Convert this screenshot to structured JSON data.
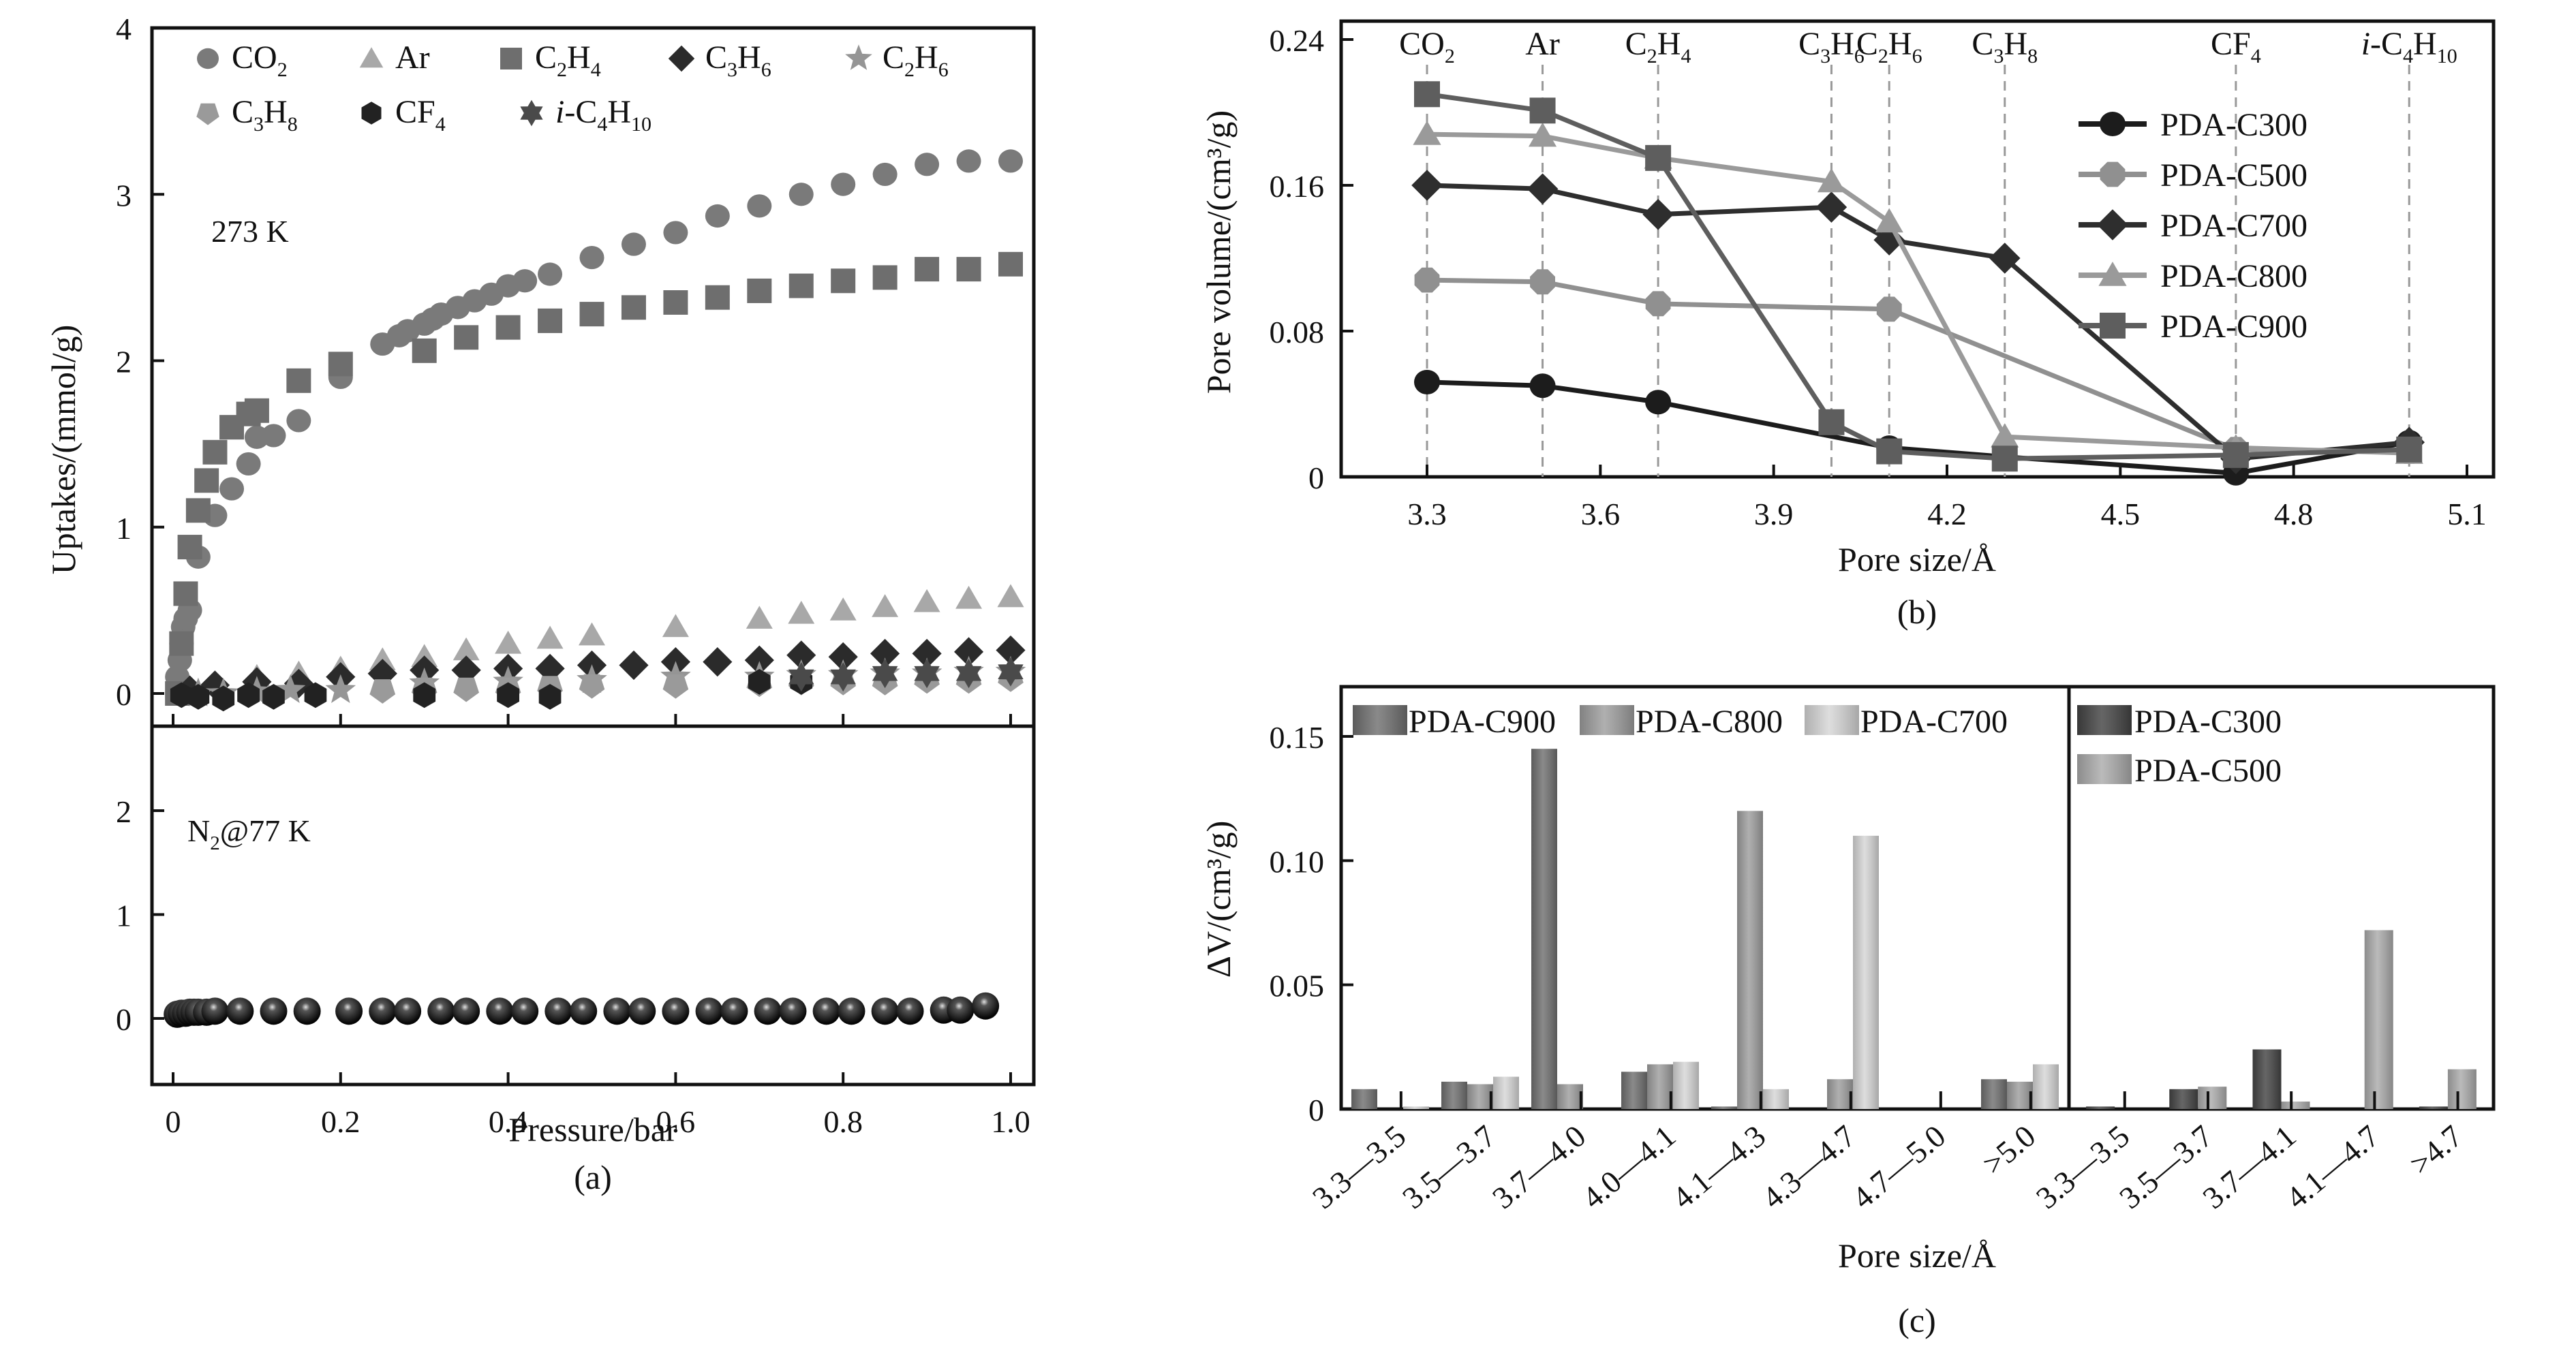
{
  "figure": {
    "panel_labels": [
      "(a)",
      "(b)",
      "(c)"
    ]
  },
  "chart_data": [
    {
      "id": "a-top",
      "type": "scatter",
      "title": "",
      "annotation": "273 K",
      "xlabel": "Pressure/bar",
      "ylabel": "Uptakes/(mmol/g)",
      "xlim": [
        -0.02,
        1.03
      ],
      "ylim": [
        -0.2,
        4
      ],
      "yticks": [
        0,
        1,
        2,
        3,
        4
      ],
      "xticks": [
        0,
        0.2,
        0.4,
        0.6,
        0.8,
        1.0
      ],
      "legend_position": "top",
      "series": [
        {
          "name": "CO2",
          "label_parts": [
            [
              "CO",
              ""
            ],
            [
              "2",
              "sub"
            ]
          ],
          "marker": "circle",
          "color": "#7a7a7a",
          "x": [
            0.005,
            0.008,
            0.01,
            0.012,
            0.015,
            0.02,
            0.03,
            0.05,
            0.07,
            0.09,
            0.1,
            0.12,
            0.15,
            0.2,
            0.25,
            0.27,
            0.28,
            0.3,
            0.31,
            0.32,
            0.34,
            0.36,
            0.38,
            0.4,
            0.42,
            0.45,
            0.5,
            0.55,
            0.6,
            0.65,
            0.7,
            0.75,
            0.8,
            0.85,
            0.9,
            0.95,
            1.0
          ],
          "y": [
            0.1,
            0.2,
            0.3,
            0.4,
            0.45,
            0.5,
            0.82,
            1.07,
            1.23,
            1.38,
            1.54,
            1.55,
            1.64,
            1.9,
            2.1,
            2.15,
            2.18,
            2.22,
            2.25,
            2.28,
            2.32,
            2.36,
            2.4,
            2.45,
            2.48,
            2.52,
            2.62,
            2.7,
            2.77,
            2.87,
            2.93,
            3.0,
            3.06,
            3.12,
            3.18,
            3.2,
            3.2
          ]
        },
        {
          "name": "Ar",
          "label_parts": [
            [
              "Ar",
              ""
            ]
          ],
          "marker": "triangle",
          "color": "#a8a8a8",
          "x": [
            0.05,
            0.1,
            0.15,
            0.2,
            0.25,
            0.3,
            0.35,
            0.4,
            0.45,
            0.5,
            0.6,
            0.7,
            0.75,
            0.8,
            0.85,
            0.9,
            0.95,
            1.0
          ],
          "y": [
            0.05,
            0.1,
            0.12,
            0.15,
            0.2,
            0.22,
            0.26,
            0.3,
            0.33,
            0.35,
            0.4,
            0.45,
            0.48,
            0.5,
            0.52,
            0.55,
            0.57,
            0.58
          ]
        },
        {
          "name": "C2H4",
          "label_parts": [
            [
              "C",
              ""
            ],
            [
              "2",
              "sub"
            ],
            [
              "H",
              ""
            ],
            [
              "4",
              "sub"
            ]
          ],
          "marker": "square",
          "color": "#6e6e6e",
          "x": [
            0.005,
            0.01,
            0.015,
            0.02,
            0.03,
            0.04,
            0.05,
            0.07,
            0.09,
            0.1,
            0.15,
            0.2,
            0.3,
            0.35,
            0.4,
            0.45,
            0.5,
            0.55,
            0.6,
            0.65,
            0.7,
            0.75,
            0.8,
            0.85,
            0.9,
            0.95,
            1.0
          ],
          "y": [
            0.0,
            0.3,
            0.6,
            0.88,
            1.1,
            1.28,
            1.45,
            1.6,
            1.68,
            1.7,
            1.88,
            1.98,
            2.06,
            2.14,
            2.2,
            2.24,
            2.28,
            2.32,
            2.35,
            2.38,
            2.42,
            2.45,
            2.48,
            2.5,
            2.55,
            2.55,
            2.58
          ]
        },
        {
          "name": "C3H6",
          "label_parts": [
            [
              "C",
              ""
            ],
            [
              "3",
              "sub"
            ],
            [
              "H",
              ""
            ],
            [
              "6",
              "sub"
            ]
          ],
          "marker": "diamond",
          "color": "#2b2b2b",
          "x": [
            0.02,
            0.05,
            0.1,
            0.15,
            0.2,
            0.25,
            0.3,
            0.35,
            0.4,
            0.45,
            0.5,
            0.55,
            0.6,
            0.65,
            0.7,
            0.75,
            0.8,
            0.85,
            0.9,
            0.95,
            1.0
          ],
          "y": [
            0.02,
            0.05,
            0.07,
            0.06,
            0.1,
            0.12,
            0.14,
            0.14,
            0.15,
            0.15,
            0.17,
            0.17,
            0.19,
            0.19,
            0.2,
            0.23,
            0.22,
            0.24,
            0.24,
            0.25,
            0.26
          ]
        },
        {
          "name": "C2H6",
          "label_parts": [
            [
              "C",
              ""
            ],
            [
              "2",
              "sub"
            ],
            [
              "H",
              ""
            ],
            [
              "6",
              "sub"
            ]
          ],
          "marker": "star5",
          "color": "#959595",
          "x": [
            0.03,
            0.06,
            0.1,
            0.14,
            0.2,
            0.3,
            0.4,
            0.5,
            0.6,
            0.7,
            0.75,
            0.8,
            0.85,
            0.9,
            0.95,
            1.0
          ],
          "y": [
            0.0,
            0.0,
            0.01,
            0.02,
            0.02,
            0.06,
            0.07,
            0.08,
            0.1,
            0.1,
            0.11,
            0.11,
            0.12,
            0.12,
            0.13,
            0.13
          ]
        },
        {
          "name": "C3H8",
          "label_parts": [
            [
              "C",
              ""
            ],
            [
              "3",
              "sub"
            ],
            [
              "H",
              ""
            ],
            [
              "8",
              "sub"
            ]
          ],
          "marker": "pentagon",
          "color": "#9a9a9a",
          "x": [
            0.25,
            0.3,
            0.35,
            0.4,
            0.45,
            0.5,
            0.6,
            0.7,
            0.75,
            0.8,
            0.85,
            0.9,
            0.95,
            1.0
          ],
          "y": [
            0.02,
            0.03,
            0.03,
            0.03,
            0.04,
            0.05,
            0.05,
            0.06,
            0.07,
            0.07,
            0.07,
            0.08,
            0.08,
            0.09
          ]
        },
        {
          "name": "CF4",
          "label_parts": [
            [
              "CF",
              ""
            ],
            [
              "4",
              "sub"
            ]
          ],
          "marker": "hexagon",
          "color": "#222222",
          "x": [
            0.01,
            0.03,
            0.06,
            0.09,
            0.12,
            0.17,
            0.3,
            0.4,
            0.45,
            0.7,
            0.75
          ],
          "y": [
            -0.01,
            -0.02,
            -0.03,
            -0.01,
            -0.02,
            -0.01,
            -0.01,
            -0.01,
            -0.02,
            0.07,
            0.07
          ]
        },
        {
          "name": "i-C4H10",
          "label_parts": [
            [
              "i",
              "ital"
            ],
            [
              "-C",
              ""
            ],
            [
              "4",
              "sub"
            ],
            [
              "H",
              ""
            ],
            [
              "10",
              "sub"
            ]
          ],
          "marker": "star6",
          "color": "#4a4a4a",
          "x": [
            0.75,
            0.8,
            0.85,
            0.9,
            0.95,
            1.0
          ],
          "y": [
            0.1,
            0.1,
            0.12,
            0.12,
            0.12,
            0.13
          ]
        }
      ]
    },
    {
      "id": "a-bottom",
      "type": "scatter",
      "annotation_parts": [
        [
          "N",
          ""
        ],
        [
          "2",
          "sub"
        ],
        [
          "@77 K",
          ""
        ]
      ],
      "xlim": [
        -0.02,
        1.03
      ],
      "ylim": [
        -0.2,
        2.75
      ],
      "yticks": [
        0,
        1,
        2
      ],
      "xticks": [
        0,
        0.2,
        0.4,
        0.6,
        0.8,
        1.0
      ],
      "xticklabels": [
        "0",
        "0.2",
        "0.4",
        "0.6",
        "0.8",
        "1.0"
      ],
      "series": [
        {
          "name": "N2 @77 K",
          "marker": "sphere",
          "color": "#151515",
          "x": [
            0.005,
            0.01,
            0.015,
            0.02,
            0.025,
            0.03,
            0.04,
            0.05,
            0.08,
            0.12,
            0.16,
            0.21,
            0.25,
            0.28,
            0.32,
            0.35,
            0.39,
            0.42,
            0.46,
            0.49,
            0.53,
            0.56,
            0.6,
            0.64,
            0.67,
            0.71,
            0.74,
            0.78,
            0.81,
            0.85,
            0.88,
            0.92,
            0.94,
            0.97
          ],
          "y": [
            0.04,
            0.05,
            0.05,
            0.06,
            0.06,
            0.06,
            0.06,
            0.07,
            0.07,
            0.07,
            0.07,
            0.07,
            0.07,
            0.07,
            0.07,
            0.07,
            0.07,
            0.07,
            0.07,
            0.07,
            0.07,
            0.07,
            0.07,
            0.07,
            0.07,
            0.07,
            0.07,
            0.07,
            0.07,
            0.07,
            0.07,
            0.08,
            0.08,
            0.12
          ]
        }
      ],
      "panel_label": "(a)"
    },
    {
      "id": "b",
      "type": "line",
      "xlabel": "Pore size/Å",
      "ylabel": "Pore volume/(cm³/g)",
      "xlim": [
        3.15,
        5.19
      ],
      "ylim": [
        0,
        0.2475
      ],
      "xticks": [
        3.3,
        3.6,
        3.9,
        4.2,
        4.5,
        4.8,
        5.1
      ],
      "xticklabels": [
        "3.3",
        "3.6",
        "3.9",
        "4.2",
        "4.5",
        "4.8",
        "5.1"
      ],
      "yticks": [
        0,
        0.08,
        0.16,
        0.24
      ],
      "yticklabels": [
        "0",
        "0.08",
        "0.16",
        "0.24"
      ],
      "legend_position": "right",
      "reference_lines": [
        {
          "x": 3.3,
          "label_parts": [
            [
              "CO",
              ""
            ],
            [
              "2",
              "sub"
            ]
          ]
        },
        {
          "x": 3.5,
          "label_parts": [
            [
              "Ar",
              ""
            ]
          ]
        },
        {
          "x": 3.7,
          "label_parts": [
            [
              "C",
              ""
            ],
            [
              "2",
              "sub"
            ],
            [
              "H",
              ""
            ],
            [
              "4",
              "sub"
            ]
          ]
        },
        {
          "x": 4.0,
          "label_parts": [
            [
              "C",
              ""
            ],
            [
              "3",
              "sub"
            ],
            [
              "H",
              ""
            ],
            [
              "6",
              "sub"
            ]
          ]
        },
        {
          "x": 4.1,
          "label_parts": [
            [
              "C",
              ""
            ],
            [
              "2",
              "sub"
            ],
            [
              "H",
              ""
            ],
            [
              "6",
              "sub"
            ]
          ]
        },
        {
          "x": 4.3,
          "label_parts": [
            [
              "C",
              ""
            ],
            [
              "3",
              "sub"
            ],
            [
              "H",
              ""
            ],
            [
              "8",
              "sub"
            ]
          ]
        },
        {
          "x": 4.7,
          "label_parts": [
            [
              "CF",
              ""
            ],
            [
              "4",
              "sub"
            ]
          ]
        },
        {
          "x": 5.0,
          "label_parts": [
            [
              "i",
              "ital"
            ],
            [
              "-C",
              ""
            ],
            [
              "4",
              "sub"
            ],
            [
              "H",
              ""
            ],
            [
              "10",
              "sub"
            ]
          ]
        }
      ],
      "series": [
        {
          "name": "PDA-C300",
          "marker": "circle",
          "color": "#1c1c1c",
          "x": [
            3.3,
            3.5,
            3.7,
            4.1,
            4.3,
            4.7,
            5.0
          ],
          "y": [
            0.052,
            0.05,
            0.041,
            0.016,
            0.011,
            0.002,
            0.019
          ]
        },
        {
          "name": "PDA-C500",
          "marker": "octagon",
          "color": "#909090",
          "x": [
            3.3,
            3.5,
            3.7,
            4.1,
            4.7,
            5.0
          ],
          "y": [
            0.108,
            0.107,
            0.095,
            0.092,
            0.015,
            0.014
          ]
        },
        {
          "name": "PDA-C700",
          "marker": "diamond",
          "color": "#2e2e2e",
          "x": [
            3.3,
            3.5,
            3.7,
            4.0,
            4.1,
            4.3,
            4.7,
            5.0
          ],
          "y": [
            0.16,
            0.158,
            0.144,
            0.148,
            0.13,
            0.12,
            0.01,
            0.019
          ]
        },
        {
          "name": "PDA-C800",
          "marker": "triangle",
          "color": "#9a9a9a",
          "x": [
            3.3,
            3.5,
            3.7,
            4.0,
            4.1,
            4.3,
            4.7,
            5.0
          ],
          "y": [
            0.188,
            0.187,
            0.175,
            0.162,
            0.14,
            0.022,
            0.016,
            0.013
          ]
        },
        {
          "name": "PDA-C900",
          "marker": "square",
          "color": "#5e5e5e",
          "x": [
            3.3,
            3.5,
            3.7,
            4.0,
            4.1,
            4.3,
            4.7,
            5.0
          ],
          "y": [
            0.21,
            0.201,
            0.175,
            0.03,
            0.014,
            0.01,
            0.012,
            0.015
          ]
        }
      ],
      "panel_label": "(b)"
    },
    {
      "id": "c",
      "type": "bar",
      "xlabel": "Pore size/Å",
      "ylabel": "ΔV/(cm³/g)",
      "ylim": [
        0,
        0.17
      ],
      "yticks": [
        0,
        0.05,
        0.1,
        0.15
      ],
      "yticklabels": [
        "0",
        "0.05",
        "0.10",
        "0.15"
      ],
      "groups": [
        {
          "categories": [
            "3.3—3.5",
            "3.5—3.7",
            "3.7—4.0",
            "4.0—4.1",
            "4.1—4.3",
            "4.3—4.7",
            "4.7—5.0",
            ">5.0"
          ],
          "legend_position": "top-left",
          "series": [
            {
              "name": "PDA-C900",
              "color": "#707070",
              "values": [
                0.008,
                0.011,
                0.145,
                0.015,
                0.001,
                0.0,
                0.0,
                0.012
              ]
            },
            {
              "name": "PDA-C800",
              "color": "#9e9e9e",
              "values": [
                0.0,
                0.01,
                0.01,
                0.018,
                0.12,
                0.012,
                0.0,
                0.011
              ]
            },
            {
              "name": "PDA-C700",
              "color": "#d6d6d6",
              "values": [
                0.001,
                0.013,
                0.0,
                0.019,
                0.008,
                0.11,
                0.0,
                0.018
              ]
            }
          ]
        },
        {
          "categories": [
            "3.3—3.5",
            "3.5—3.7",
            "3.7—4.1",
            "4.1—4.7",
            ">4.7"
          ],
          "legend_position": "top-left",
          "series": [
            {
              "name": "PDA-C300",
              "color": "#444444",
              "values": [
                0.001,
                0.008,
                0.024,
                0.0,
                0.001
              ]
            },
            {
              "name": "PDA-C500",
              "color": "#ababab",
              "values": [
                0.0,
                0.009,
                0.003,
                0.072,
                0.016
              ]
            }
          ]
        }
      ],
      "panel_label": "(c)"
    }
  ]
}
